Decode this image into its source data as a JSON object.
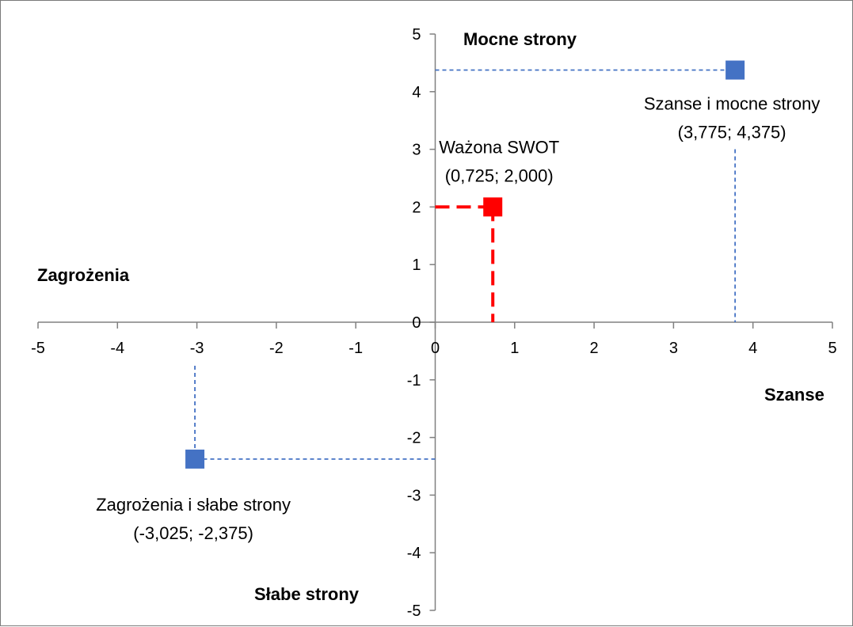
{
  "chart_data": {
    "type": "scatter",
    "title": "",
    "xlabel": "",
    "ylabel": "",
    "xlim": [
      -5,
      5
    ],
    "ylim": [
      -5,
      5
    ],
    "x_ticks": [
      "-5",
      "-4",
      "-3",
      "-2",
      "-1",
      "0",
      "1",
      "2",
      "3",
      "4",
      "5"
    ],
    "y_ticks": [
      "5",
      "4",
      "3",
      "2",
      "1",
      "0",
      "-1",
      "-2",
      "-3",
      "-4",
      "-5"
    ],
    "grid": false,
    "quadrant_labels": {
      "top": "Mocne strony",
      "bottom": "Słabe strony",
      "left": "Zagrożenia",
      "right": "Szanse"
    },
    "points": [
      {
        "x": 3.775,
        "y": 4.375,
        "label": "Szanse i mocne strony",
        "coords": "(3,775; 4,375)",
        "color": "#4472c4"
      },
      {
        "x": 0.725,
        "y": 2.0,
        "label": "Ważona SWOT",
        "coords": "(0,725; 2,000)",
        "color": "#ff0000"
      },
      {
        "x": -3.025,
        "y": -2.375,
        "label": "Zagrożenia i słabe  strony",
        "coords": "(-3,025; -2,375)",
        "color": "#4472c4"
      }
    ]
  }
}
